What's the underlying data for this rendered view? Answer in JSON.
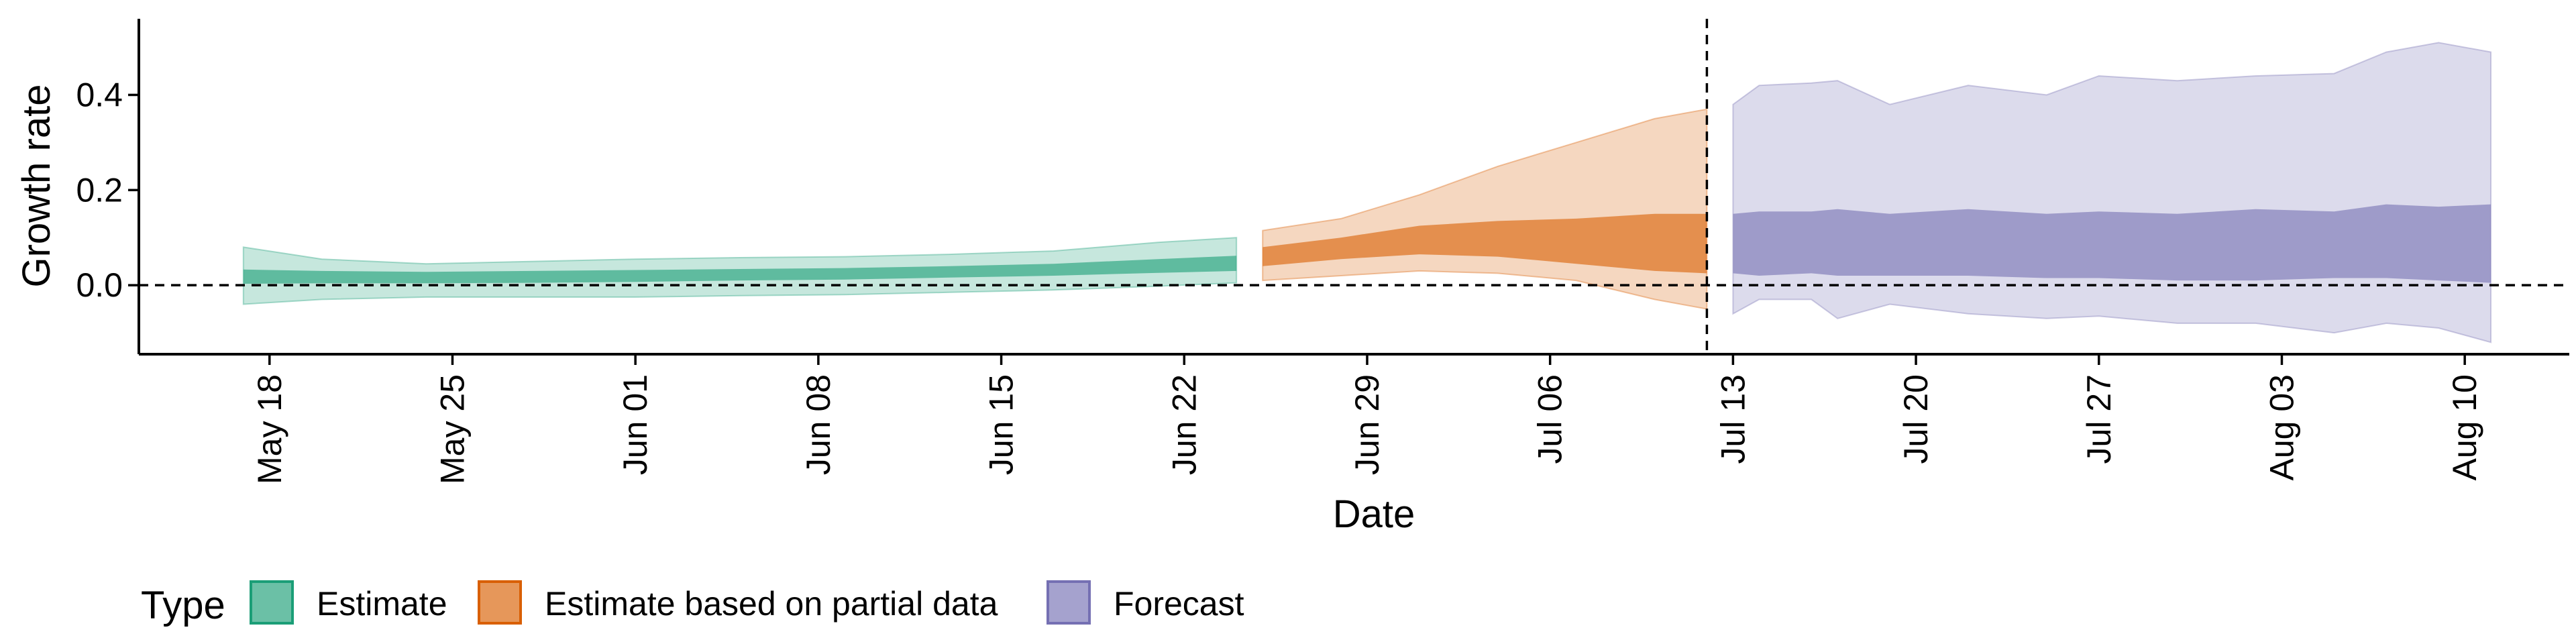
{
  "chart_data": {
    "type": "area",
    "xlabel": "Date",
    "ylabel": "Growth rate",
    "x_ticks": [
      "May 18",
      "May 25",
      "Jun 01",
      "Jun 08",
      "Jun 15",
      "Jun 22",
      "Jun 29",
      "Jul 06",
      "Jul 13",
      "Jul 20",
      "Jul 27",
      "Aug 03",
      "Aug 10"
    ],
    "y_ticks": [
      "0.0",
      "0.2",
      "0.4"
    ],
    "xlim": [
      "2020-05-13",
      "2020-08-14"
    ],
    "ylim": [
      -0.145,
      0.56
    ],
    "reference_lines": [
      {
        "axis": "y",
        "value": 0.0,
        "style": "dashed"
      },
      {
        "axis": "x",
        "value": "2020-07-12",
        "style": "dashed"
      }
    ],
    "legend": {
      "title": "Type",
      "position": "bottom",
      "entries": [
        {
          "label": "Estimate",
          "color": "#1b9e77"
        },
        {
          "label": "Estimate based on partial data",
          "color": "#d95f02"
        },
        {
          "label": "Forecast",
          "color": "#7570b3"
        }
      ]
    },
    "series": [
      {
        "name": "Estimate",
        "color": "#1b9e77",
        "points": [
          {
            "date": "2020-05-17",
            "outer": [
              -0.04,
              0.08
            ],
            "inner": [
              0.003,
              0.033
            ]
          },
          {
            "date": "2020-05-20",
            "outer": [
              -0.03,
              0.055
            ],
            "inner": [
              0.004,
              0.03
            ]
          },
          {
            "date": "2020-05-24",
            "outer": [
              -0.025,
              0.045
            ],
            "inner": [
              0.004,
              0.028
            ]
          },
          {
            "date": "2020-05-28",
            "outer": [
              -0.025,
              0.05
            ],
            "inner": [
              0.005,
              0.03
            ]
          },
          {
            "date": "2020-06-01",
            "outer": [
              -0.025,
              0.055
            ],
            "inner": [
              0.007,
              0.032
            ]
          },
          {
            "date": "2020-06-05",
            "outer": [
              -0.022,
              0.058
            ],
            "inner": [
              0.01,
              0.034
            ]
          },
          {
            "date": "2020-06-09",
            "outer": [
              -0.02,
              0.06
            ],
            "inner": [
              0.012,
              0.036
            ]
          },
          {
            "date": "2020-06-13",
            "outer": [
              -0.015,
              0.065
            ],
            "inner": [
              0.016,
              0.04
            ]
          },
          {
            "date": "2020-06-17",
            "outer": [
              -0.01,
              0.072
            ],
            "inner": [
              0.02,
              0.045
            ]
          },
          {
            "date": "2020-06-21",
            "outer": [
              -0.002,
              0.09
            ],
            "inner": [
              0.026,
              0.055
            ]
          },
          {
            "date": "2020-06-24",
            "outer": [
              0.005,
              0.1
            ],
            "inner": [
              0.03,
              0.062
            ]
          }
        ]
      },
      {
        "name": "Estimate based on partial data",
        "color": "#d95f02",
        "points": [
          {
            "date": "2020-06-25",
            "outer": [
              0.01,
              0.115
            ],
            "inner": [
              0.04,
              0.08
            ]
          },
          {
            "date": "2020-06-28",
            "outer": [
              0.02,
              0.14
            ],
            "inner": [
              0.055,
              0.1
            ]
          },
          {
            "date": "2020-07-01",
            "outer": [
              0.03,
              0.19
            ],
            "inner": [
              0.065,
              0.125
            ]
          },
          {
            "date": "2020-07-04",
            "outer": [
              0.025,
              0.25
            ],
            "inner": [
              0.06,
              0.135
            ]
          },
          {
            "date": "2020-07-07",
            "outer": [
              0.01,
              0.3
            ],
            "inner": [
              0.045,
              0.14
            ]
          },
          {
            "date": "2020-07-10",
            "outer": [
              -0.03,
              0.35
            ],
            "inner": [
              0.03,
              0.15
            ]
          },
          {
            "date": "2020-07-12",
            "outer": [
              -0.05,
              0.37
            ],
            "inner": [
              0.025,
              0.15
            ]
          }
        ]
      },
      {
        "name": "Forecast",
        "color": "#7570b3",
        "points": [
          {
            "date": "2020-07-13",
            "outer": [
              -0.06,
              0.38
            ],
            "inner": [
              0.025,
              0.15
            ]
          },
          {
            "date": "2020-07-14",
            "outer": [
              -0.03,
              0.42
            ],
            "inner": [
              0.02,
              0.155
            ]
          },
          {
            "date": "2020-07-16",
            "outer": [
              -0.03,
              0.425
            ],
            "inner": [
              0.025,
              0.155
            ]
          },
          {
            "date": "2020-07-17",
            "outer": [
              -0.07,
              0.43
            ],
            "inner": [
              0.02,
              0.16
            ]
          },
          {
            "date": "2020-07-19",
            "outer": [
              -0.04,
              0.38
            ],
            "inner": [
              0.02,
              0.15
            ]
          },
          {
            "date": "2020-07-22",
            "outer": [
              -0.06,
              0.42
            ],
            "inner": [
              0.02,
              0.16
            ]
          },
          {
            "date": "2020-07-25",
            "outer": [
              -0.07,
              0.4
            ],
            "inner": [
              0.015,
              0.15
            ]
          },
          {
            "date": "2020-07-27",
            "outer": [
              -0.065,
              0.44
            ],
            "inner": [
              0.015,
              0.155
            ]
          },
          {
            "date": "2020-07-30",
            "outer": [
              -0.08,
              0.43
            ],
            "inner": [
              0.01,
              0.15
            ]
          },
          {
            "date": "2020-08-02",
            "outer": [
              -0.08,
              0.44
            ],
            "inner": [
              0.01,
              0.16
            ]
          },
          {
            "date": "2020-08-05",
            "outer": [
              -0.1,
              0.445
            ],
            "inner": [
              0.015,
              0.155
            ]
          },
          {
            "date": "2020-08-07",
            "outer": [
              -0.08,
              0.49
            ],
            "inner": [
              0.015,
              0.17
            ]
          },
          {
            "date": "2020-08-09",
            "outer": [
              -0.09,
              0.51
            ],
            "inner": [
              0.01,
              0.165
            ]
          },
          {
            "date": "2020-08-11",
            "outer": [
              -0.12,
              0.49
            ],
            "inner": [
              0.005,
              0.17
            ]
          }
        ]
      }
    ]
  }
}
